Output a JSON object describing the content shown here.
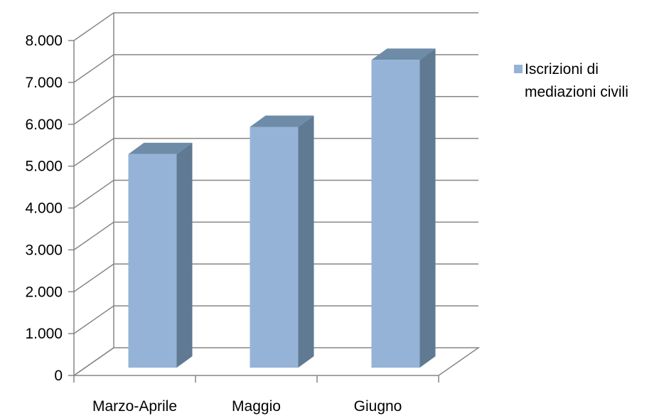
{
  "chart_data": {
    "type": "bar",
    "title": "",
    "xlabel": "",
    "ylabel": "",
    "categories": [
      "Marzo-Aprile",
      "Maggio",
      "Giugno"
    ],
    "series": [
      {
        "name": "Iscrizioni di mediazioni civili",
        "legend_lines": [
          "Iscrizioni di",
          "mediazioni civili"
        ],
        "values": [
          5100,
          5750,
          7350
        ],
        "color": "#95B3D7",
        "side_color": "#5F7A92",
        "top_color": "#6E8CA8"
      }
    ],
    "y_ticks": [
      "0",
      "1.000",
      "2.000",
      "3.000",
      "4.000",
      "5.000",
      "6.000",
      "7.000",
      "8.000"
    ],
    "ylim": [
      0,
      8000
    ],
    "grid": true,
    "legend": "right",
    "three_d": true
  }
}
